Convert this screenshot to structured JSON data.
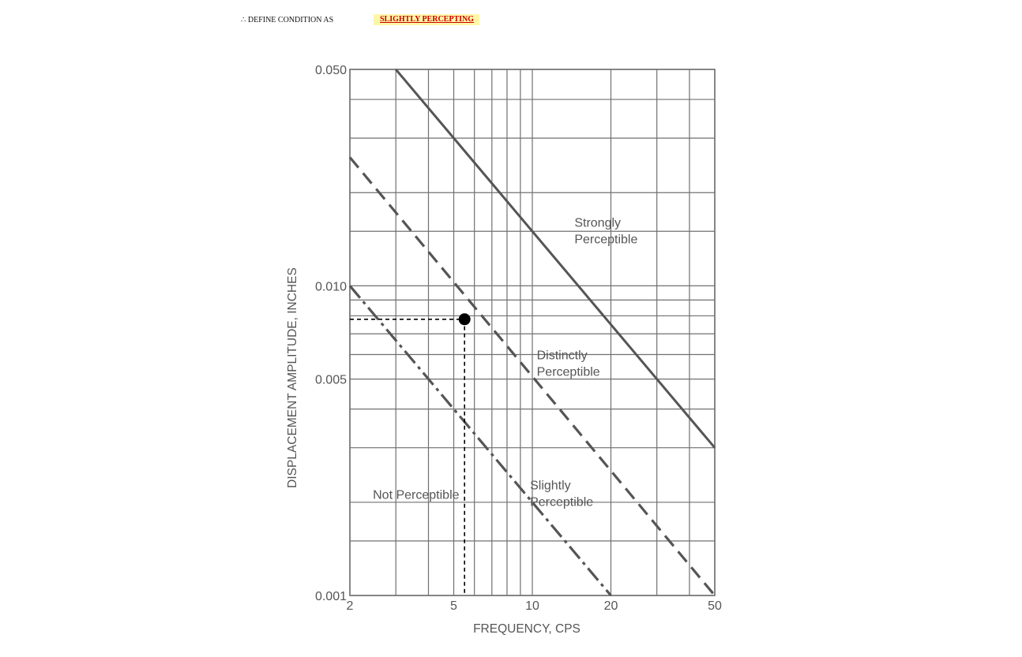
{
  "header": {
    "define_label": "∴ DEFINE CONDITION  AS",
    "condition_value": "SLIGHTLY PERCEPTING"
  },
  "colors": {
    "line": "#555555",
    "grid": "#707070",
    "marker": "#000000",
    "badge_bg": "#fff7a8",
    "badge_text": "#cc0000"
  },
  "chart_data": {
    "type": "line",
    "xlabel": "FREQUENCY, CPS",
    "ylabel": "DISPLACEMENT AMPLITUDE, INCHES",
    "x_scale": "log",
    "y_scale": "log",
    "xlim": [
      2,
      50
    ],
    "ylim": [
      0.001,
      0.05
    ],
    "grid": true,
    "x_ticks": [
      {
        "value": 2,
        "label": "2"
      },
      {
        "value": 5,
        "label": "5"
      },
      {
        "value": 10,
        "label": "10"
      },
      {
        "value": 20,
        "label": "20"
      },
      {
        "value": 50,
        "label": "50"
      }
    ],
    "y_ticks": [
      {
        "value": 0.001,
        "label": "0.001"
      },
      {
        "value": 0.005,
        "label": "0.005"
      },
      {
        "value": 0.01,
        "label": "0.010"
      },
      {
        "value": 0.05,
        "label": "0.050"
      }
    ],
    "x_grid": [
      2,
      3,
      4,
      5,
      6,
      7,
      8,
      9,
      10,
      20,
      30,
      40,
      50
    ],
    "y_grid": [
      0.001,
      0.0015,
      0.002,
      0.003,
      0.004,
      0.005,
      0.006,
      0.007,
      0.008,
      0.009,
      0.01,
      0.015,
      0.02,
      0.03,
      0.04,
      0.05
    ],
    "series": [
      {
        "id": "boundary-strong",
        "style": "solid",
        "x": [
          3,
          50
        ],
        "y": [
          0.05,
          0.003
        ]
      },
      {
        "id": "boundary-distinct",
        "style": "dashed",
        "x": [
          2,
          50
        ],
        "y": [
          0.026,
          0.001
        ]
      },
      {
        "id": "boundary-slight",
        "style": "dashdot",
        "x": [
          2,
          20
        ],
        "y": [
          0.01,
          0.001
        ]
      }
    ],
    "regions": [
      {
        "id": "strongly",
        "lines": [
          "Strongly",
          "Perceptible"
        ],
        "x": 14.5,
        "y": 0.0155
      },
      {
        "id": "distinctly",
        "lines": [
          "Distinctly",
          "Perceptible"
        ],
        "x": 10.4,
        "y": 0.0058
      },
      {
        "id": "slightly",
        "lines": [
          "Slightly",
          "Perceptible"
        ],
        "x": 9.8,
        "y": 0.0022
      },
      {
        "id": "not",
        "lines": [
          "Not Perceptible"
        ],
        "x": 2.45,
        "y": 0.00205
      }
    ],
    "point": {
      "x": 5.5,
      "y": 0.0078
    }
  }
}
